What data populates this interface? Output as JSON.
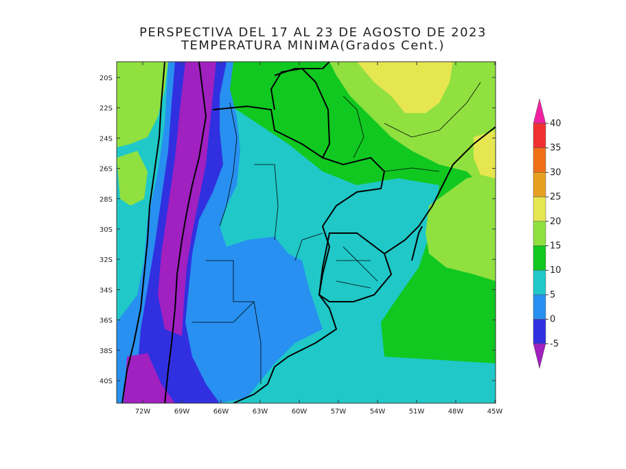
{
  "title": {
    "line1": "PERSPECTIVA DEL 17 AL 23 DE AGOSTO DE 2023",
    "line2": "TEMPERATURA MINIMA(Grados Cent.)"
  },
  "map": {
    "lat_ticks": [
      "20S",
      "22S",
      "24S",
      "26S",
      "28S",
      "30S",
      "32S",
      "34S",
      "36S",
      "38S",
      "40S"
    ],
    "lon_ticks": [
      "72W",
      "69W",
      "66W",
      "63W",
      "60W",
      "57W",
      "54W",
      "51W",
      "48W",
      "45W"
    ]
  },
  "colorbar": {
    "labels": [
      "40",
      "35",
      "30",
      "25",
      "20",
      "15",
      "10",
      "5",
      "0",
      "-5"
    ],
    "colors": {
      "below_-5": "#a020c0",
      "-5_0": "#3030e0",
      "0_5": "#2890f0",
      "5_10": "#20c8c8",
      "10_15": "#10c820",
      "15_20": "#90e040",
      "20_25": "#e6e650",
      "25_30": "#e6a020",
      "30_35": "#f07018",
      "35_40": "#f03030",
      "above_40": "#f020a0"
    }
  }
}
